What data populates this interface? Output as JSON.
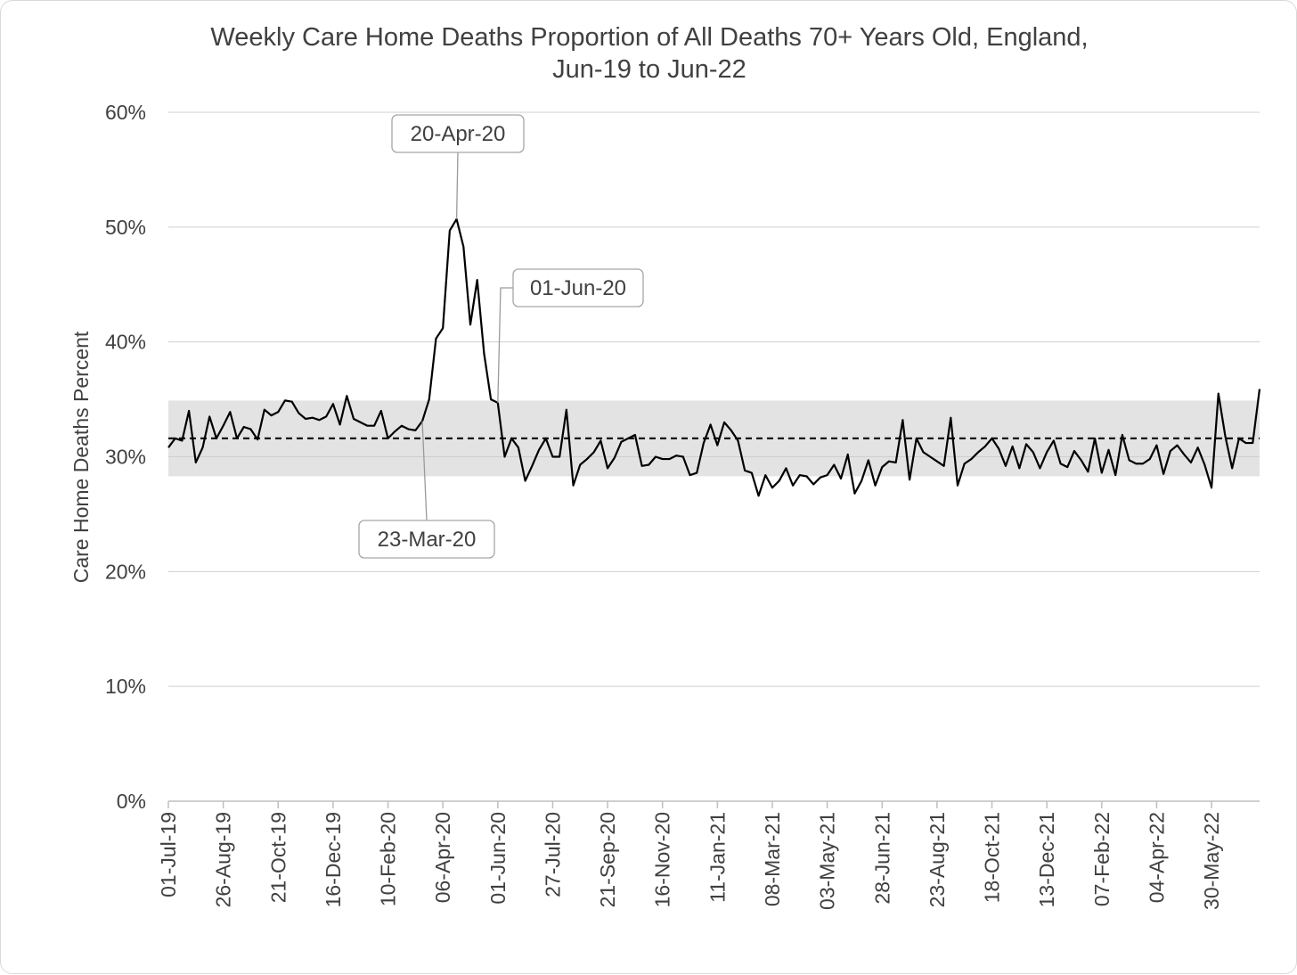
{
  "chart_data": {
    "type": "line",
    "title": "Weekly Care Home Deaths Proportion of All Deaths 70+ Years Old, England,",
    "subtitle": "Jun-19 to Jun-22",
    "xlabel": "",
    "ylabel": "Care Home Deaths Percent",
    "ylim": [
      0,
      60
    ],
    "yticks": [
      "0%",
      "10%",
      "20%",
      "30%",
      "40%",
      "50%",
      "60%"
    ],
    "ytick_values": [
      0,
      10,
      20,
      30,
      40,
      50,
      60
    ],
    "xtick_labels": [
      "01-Jul-19",
      "26-Aug-19",
      "21-Oct-19",
      "16-Dec-19",
      "10-Feb-20",
      "06-Apr-20",
      "01-Jun-20",
      "27-Jul-20",
      "21-Sep-20",
      "16-Nov-20",
      "11-Jan-21",
      "08-Mar-21",
      "03-May-21",
      "28-Jun-21",
      "23-Aug-21",
      "18-Oct-21",
      "13-Dec-21",
      "07-Feb-22",
      "04-Apr-22",
      "30-May-22"
    ],
    "grid": true,
    "mean_line": 31.6,
    "band": [
      28.3,
      34.9
    ],
    "series": [
      {
        "values": [
          30.8,
          31.6,
          31.4,
          34.0,
          29.5,
          30.8,
          33.5,
          31.6,
          32.7,
          33.9,
          31.6,
          32.6,
          32.4,
          31.5,
          34.1,
          33.6,
          33.9,
          34.9,
          34.8,
          33.8,
          33.3,
          33.4,
          33.2,
          33.5,
          34.6,
          32.8,
          35.3,
          33.3,
          33.0,
          32.7,
          32.7,
          34.0,
          31.6,
          32.2,
          32.7,
          32.4,
          32.3,
          33.1,
          35.0,
          40.3,
          41.2,
          49.7,
          50.7,
          48.3,
          41.5,
          45.4,
          39.0,
          35.0,
          34.7,
          30.0,
          31.6,
          30.8,
          27.9,
          29.2,
          30.6,
          31.6,
          30.0,
          30.0,
          34.1,
          27.5,
          29.3,
          29.8,
          30.4,
          31.4,
          29.0,
          29.9,
          31.3,
          31.6,
          31.9,
          29.2,
          29.3,
          30.0,
          29.8,
          29.8,
          30.1,
          30.0,
          28.4,
          28.6,
          31.2,
          32.8,
          31.0,
          33.0,
          32.3,
          31.4,
          28.8,
          28.6,
          26.6,
          28.4,
          27.3,
          27.9,
          29.0,
          27.5,
          28.4,
          28.3,
          27.6,
          28.2,
          28.4,
          29.3,
          28.1,
          30.2,
          26.8,
          27.9,
          29.7,
          27.5,
          29.1,
          29.6,
          29.5,
          33.2,
          28.0,
          31.6,
          30.4,
          30.0,
          29.6,
          29.2,
          33.4,
          27.5,
          29.4,
          29.8,
          30.4,
          30.9,
          31.6,
          30.7,
          29.2,
          30.9,
          29.0,
          31.1,
          30.4,
          29.0,
          30.4,
          31.4,
          29.4,
          29.1,
          30.5,
          29.7,
          28.7,
          31.6,
          28.6,
          30.6,
          28.4,
          31.9,
          29.7,
          29.4,
          29.4,
          29.8,
          31.0,
          28.5,
          30.5,
          31.0,
          30.2,
          29.5,
          30.8,
          29.3,
          27.3,
          35.5,
          31.8,
          29.0,
          31.6,
          31.2,
          31.2,
          35.9
        ]
      }
    ],
    "annotations": [
      {
        "label": "20-Apr-20",
        "week_index": 42
      },
      {
        "label": "01-Jun-20",
        "week_index": 48
      },
      {
        "label": "23-Mar-20",
        "week_index": 37
      }
    ]
  }
}
